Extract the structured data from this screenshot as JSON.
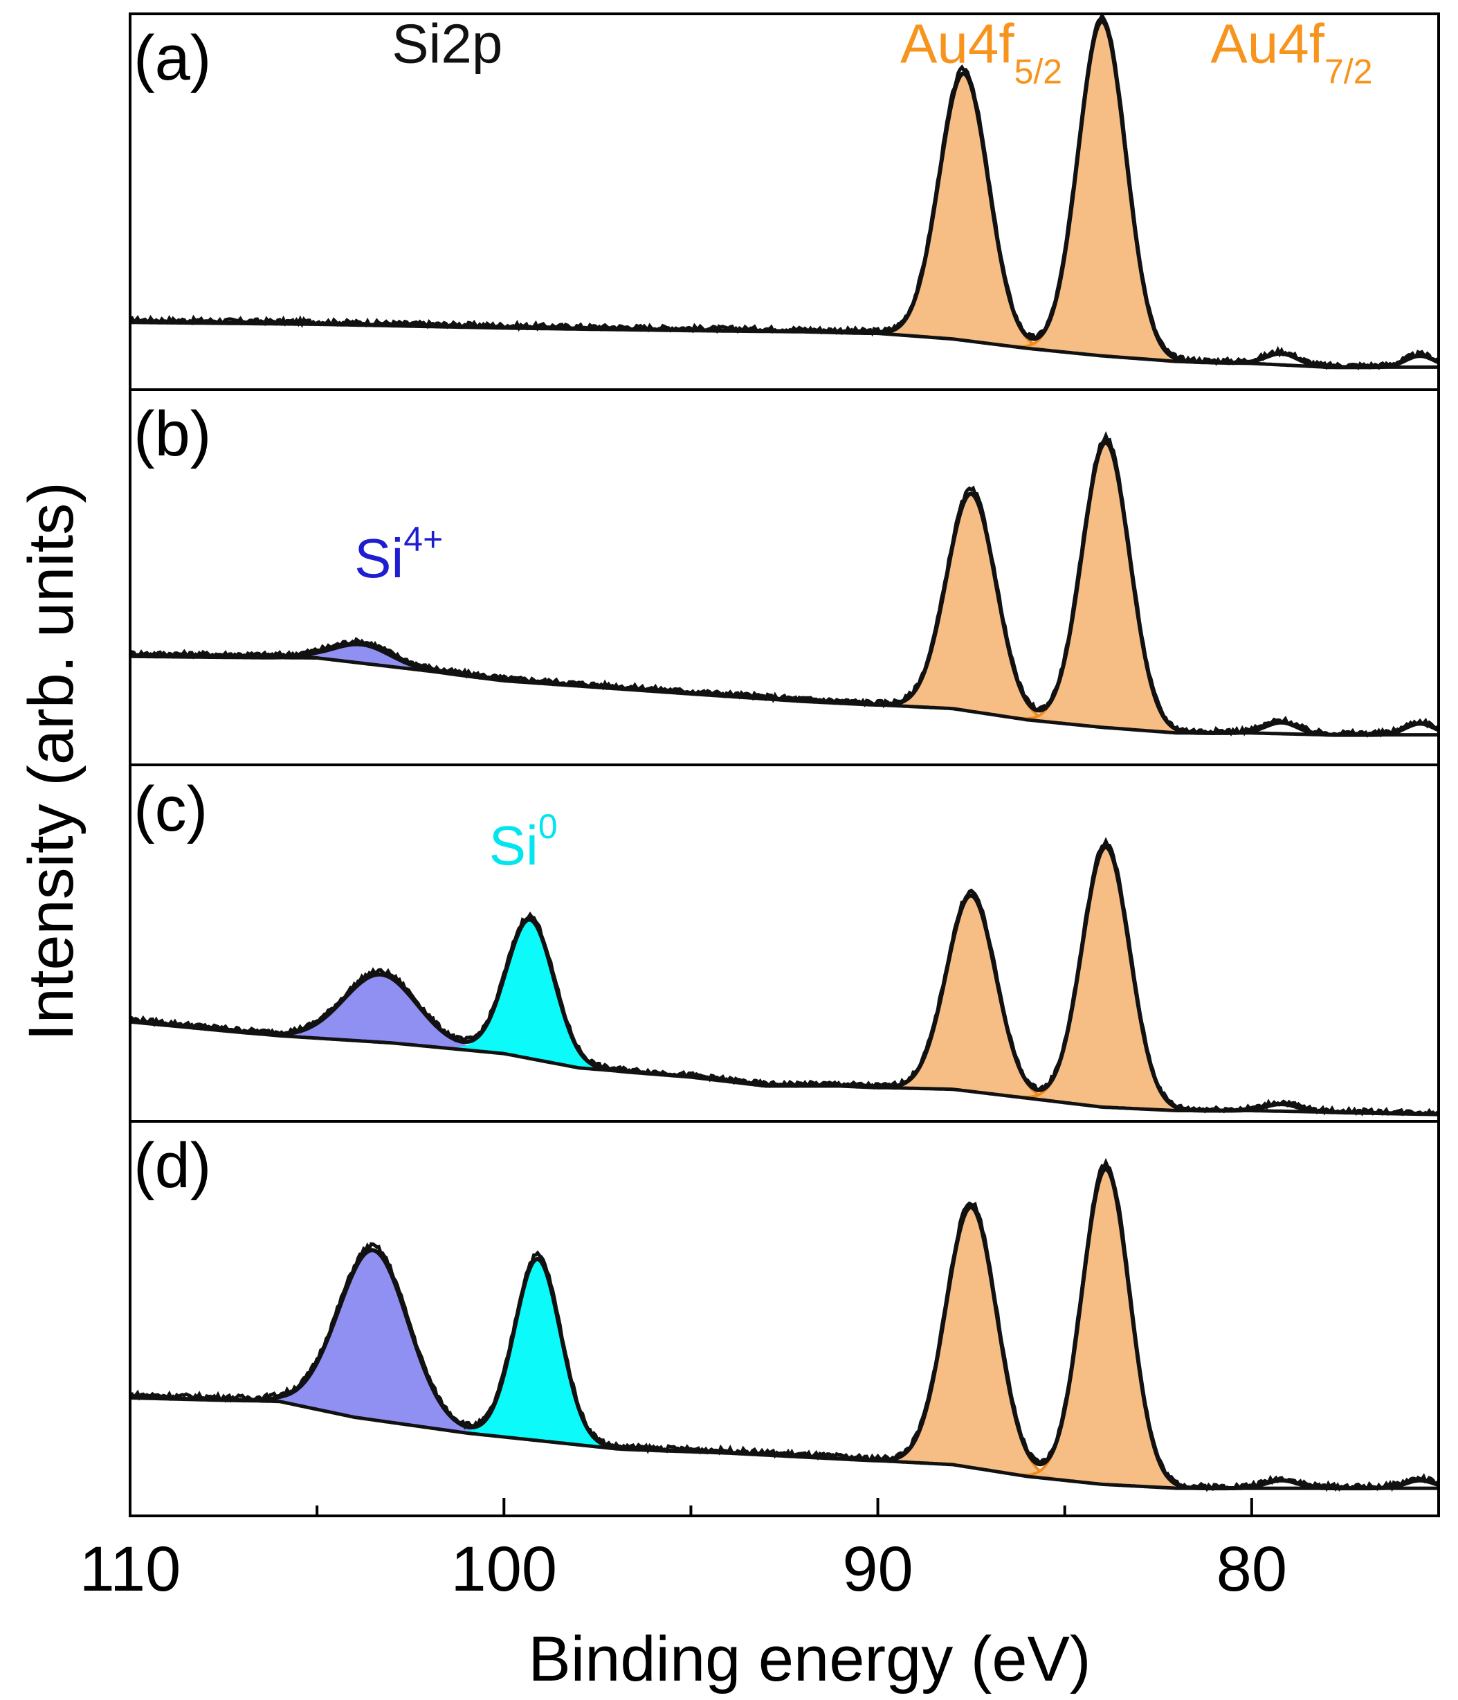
{
  "chart_data": {
    "type": "line",
    "xlabel": "Binding energy (eV)",
    "ylabel": "Intensity (arb. units)",
    "xlim": [
      110,
      75
    ],
    "x_reversed": true,
    "x_ticks": [
      110,
      100,
      90,
      80
    ],
    "x_minor_ticks": [
      105,
      95,
      85
    ],
    "grid": false,
    "legend": "none",
    "colors": {
      "curve": "#111111",
      "au": "#f5b979",
      "au_line": "#f08a1c",
      "au_label": "#f7941d",
      "si4": "#8a8af2",
      "si4_label": "#1e1ed0",
      "si0": "#00fafa",
      "si0_label": "#00e5f0",
      "frame": "#000000"
    },
    "panels": [
      {
        "label": "(a)",
        "ylim": [
          0,
          1
        ],
        "baseline": [
          [
            110,
            0.18
          ],
          [
            105,
            0.175
          ],
          [
            100,
            0.165
          ],
          [
            95,
            0.158
          ],
          [
            92,
            0.155
          ],
          [
            90,
            0.15
          ],
          [
            88,
            0.135
          ],
          [
            86,
            0.11
          ],
          [
            84,
            0.09
          ],
          [
            82,
            0.075
          ],
          [
            80,
            0.07
          ],
          [
            78,
            0.06
          ],
          [
            75,
            0.06
          ]
        ],
        "peaks": [
          {
            "name": "Au4f5/2",
            "color_key": "au",
            "center": 87.7,
            "height": 0.71,
            "fwhm": 1.55
          },
          {
            "name": "Au4f7/2",
            "color_key": "au",
            "center": 84.0,
            "height": 0.89,
            "fwhm": 1.5
          }
        ],
        "bumps": [
          {
            "center": 79.2,
            "height": 0.03,
            "fwhm": 1.0
          },
          {
            "center": 75.5,
            "height": 0.03,
            "fwhm": 0.9
          }
        ],
        "annotations": [
          {
            "text": "Si2p",
            "x": 103.0,
            "y": 0.87,
            "color_key": "curve"
          },
          {
            "text": "Au4f",
            "sub": "5/2",
            "x": 89.4,
            "y": 0.87,
            "color_key": "au_label"
          },
          {
            "text": "Au4f",
            "sub": "7/2",
            "x": 81.1,
            "y": 0.87,
            "color_key": "au_label"
          }
        ]
      },
      {
        "label": "(b)",
        "ylim": [
          0,
          1
        ],
        "baseline": [
          [
            110,
            0.29
          ],
          [
            105,
            0.285
          ],
          [
            102,
            0.25
          ],
          [
            100,
            0.225
          ],
          [
            95,
            0.19
          ],
          [
            92,
            0.17
          ],
          [
            90,
            0.16
          ],
          [
            88,
            0.15
          ],
          [
            86,
            0.12
          ],
          [
            84,
            0.1
          ],
          [
            82,
            0.085
          ],
          [
            80,
            0.085
          ],
          [
            78,
            0.08
          ],
          [
            75,
            0.08
          ]
        ],
        "peaks": [
          {
            "name": "Si4+",
            "color_key": "si4",
            "center": 103.8,
            "height": 0.05,
            "fwhm": 1.8
          },
          {
            "name": "Au4f5/2",
            "color_key": "au",
            "center": 87.5,
            "height": 0.58,
            "fwhm": 1.55
          },
          {
            "name": "Au4f7/2",
            "color_key": "au",
            "center": 83.9,
            "height": 0.76,
            "fwhm": 1.5
          }
        ],
        "bumps": [
          {
            "center": 79.2,
            "height": 0.03,
            "fwhm": 1.0
          },
          {
            "center": 75.5,
            "height": 0.03,
            "fwhm": 0.9
          }
        ],
        "annotations": [
          {
            "text": "Si",
            "sup": "4+",
            "x": 104.0,
            "y": 0.5,
            "color_key": "si4_label"
          }
        ]
      },
      {
        "label": "(c)",
        "ylim": [
          0,
          1
        ],
        "baseline": [
          [
            110,
            0.28
          ],
          [
            106,
            0.24
          ],
          [
            103,
            0.22
          ],
          [
            100,
            0.19
          ],
          [
            98,
            0.15
          ],
          [
            95,
            0.125
          ],
          [
            93,
            0.1
          ],
          [
            91,
            0.1
          ],
          [
            90,
            0.095
          ],
          [
            88,
            0.09
          ],
          [
            86,
            0.065
          ],
          [
            84,
            0.04
          ],
          [
            82,
            0.03
          ],
          [
            80,
            0.03
          ],
          [
            75,
            0.02
          ]
        ],
        "peaks": [
          {
            "name": "Si4+",
            "color_key": "si4",
            "center": 103.3,
            "height": 0.19,
            "fwhm": 2.3
          },
          {
            "name": "Si0",
            "color_key": "si0",
            "center": 99.3,
            "height": 0.39,
            "fwhm": 1.5
          },
          {
            "name": "Au4f5/2",
            "color_key": "au",
            "center": 87.5,
            "height": 0.55,
            "fwhm": 1.55
          },
          {
            "name": "Au4f7/2",
            "color_key": "au",
            "center": 83.9,
            "height": 0.73,
            "fwhm": 1.5
          }
        ],
        "bumps": [
          {
            "center": 79.2,
            "height": 0.02,
            "fwhm": 1.0
          }
        ],
        "annotations": [
          {
            "text": "Si",
            "sup": "0",
            "x": 100.4,
            "y": 0.72,
            "color_key": "si0_label"
          }
        ]
      },
      {
        "label": "(d)",
        "ylim": [
          0,
          1
        ],
        "baseline": [
          [
            110,
            0.3
          ],
          [
            106,
            0.29
          ],
          [
            104,
            0.25
          ],
          [
            101,
            0.21
          ],
          [
            98,
            0.18
          ],
          [
            97,
            0.17
          ],
          [
            94,
            0.16
          ],
          [
            92,
            0.15
          ],
          [
            90,
            0.14
          ],
          [
            88,
            0.13
          ],
          [
            86,
            0.1
          ],
          [
            84,
            0.08
          ],
          [
            82,
            0.07
          ],
          [
            80,
            0.07
          ],
          [
            75,
            0.07
          ]
        ],
        "peaks": [
          {
            "name": "Si4+",
            "color_key": "si4",
            "center": 103.5,
            "height": 0.43,
            "fwhm": 2.2
          },
          {
            "name": "Si0",
            "color_key": "si0",
            "center": 99.1,
            "height": 0.46,
            "fwhm": 1.45
          },
          {
            "name": "Au4f5/2",
            "color_key": "au",
            "center": 87.5,
            "height": 0.66,
            "fwhm": 1.6
          },
          {
            "name": "Au4f7/2",
            "color_key": "au",
            "center": 83.9,
            "height": 0.8,
            "fwhm": 1.5
          }
        ],
        "bumps": [
          {
            "center": 79.2,
            "height": 0.02,
            "fwhm": 1.0
          },
          {
            "center": 75.5,
            "height": 0.02,
            "fwhm": 0.9
          }
        ],
        "annotations": []
      }
    ]
  }
}
